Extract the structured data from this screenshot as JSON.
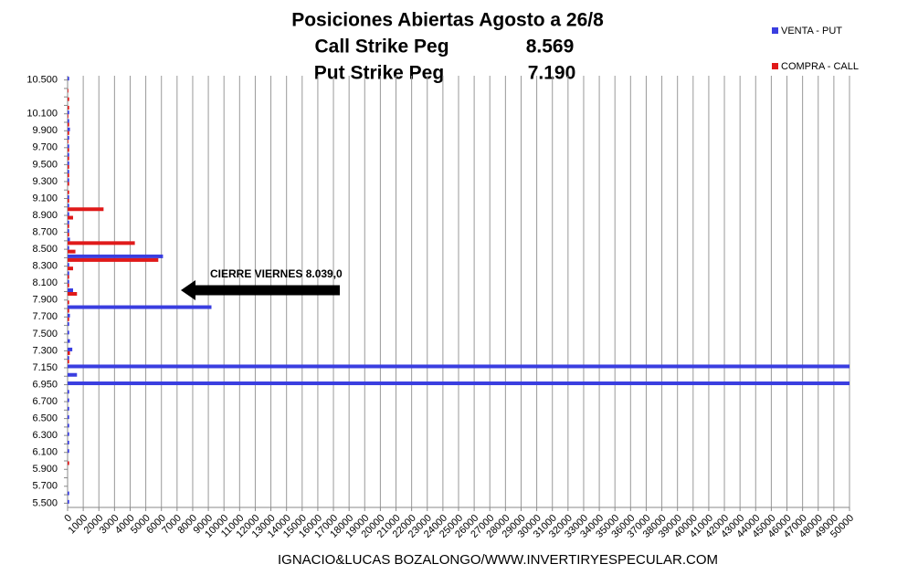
{
  "chart_data": {
    "type": "bar",
    "orientation": "horizontal",
    "title": "Posiciones Abiertas Agosto a 26/8",
    "subtitle_rows": [
      [
        "Call Strike Peg",
        "8.569"
      ],
      [
        "Put Strike Peg",
        "7.190"
      ]
    ],
    "annotation": "CIERRE VIERNES  8.039,0",
    "footer": "IGNACIO&LUCAS BOZALONGO/WWW.INVERTIRYESPECULAR.COM",
    "categories": [
      "5.500",
      null,
      "5.700",
      null,
      "5.900",
      null,
      "6.100",
      null,
      "6.300",
      null,
      "6.500",
      null,
      "6.700",
      null,
      "6.950",
      null,
      "7.150",
      null,
      "7.300",
      null,
      "7.500",
      null,
      "7.700",
      null,
      "7.900",
      null,
      "8.100",
      null,
      "8.300",
      null,
      "8.500",
      null,
      "8.700",
      null,
      "8.900",
      null,
      "9.100",
      null,
      "9.300",
      null,
      "9.500",
      null,
      "9.700",
      null,
      "9.900",
      null,
      "10.100",
      null,
      null,
      null,
      "10.500"
    ],
    "series": [
      {
        "name": "VENTA - PUT",
        "color": "#3a3ee0",
        "values": [
          100,
          100,
          0,
          0,
          0,
          0,
          100,
          100,
          100,
          100,
          100,
          100,
          100,
          100,
          50000,
          600,
          50000,
          100,
          300,
          150,
          100,
          100,
          150,
          9200,
          0,
          350,
          100,
          100,
          100,
          6100,
          100,
          150,
          100,
          100,
          100,
          100,
          100,
          0,
          100,
          100,
          100,
          100,
          100,
          100,
          150,
          100,
          100,
          0,
          0,
          0,
          100
        ]
      },
      {
        "name": "COMPRA - CALL",
        "color": "#e01a1a",
        "values": [
          0,
          0,
          0,
          0,
          0,
          100,
          0,
          0,
          0,
          0,
          0,
          0,
          0,
          0,
          0,
          0,
          0,
          100,
          150,
          0,
          0,
          0,
          100,
          100,
          100,
          600,
          100,
          100,
          350,
          5800,
          500,
          4300,
          100,
          100,
          350,
          2300,
          100,
          100,
          100,
          100,
          100,
          100,
          100,
          50,
          100,
          100,
          50,
          100,
          100,
          50,
          0
        ]
      }
    ],
    "xlim": [
      0,
      50000
    ],
    "xticks": [
      0,
      1000,
      2000,
      3000,
      4000,
      5000,
      6000,
      7000,
      8000,
      9000,
      10000,
      11000,
      12000,
      13000,
      14000,
      15000,
      16000,
      17000,
      18000,
      19000,
      20000,
      21000,
      22000,
      23000,
      24000,
      25000,
      26000,
      27000,
      28000,
      29000,
      30000,
      31000,
      32000,
      33000,
      34000,
      35000,
      36000,
      37000,
      38000,
      39000,
      40000,
      41000,
      42000,
      43000,
      44000,
      45000,
      46000,
      47000,
      48000,
      49000,
      50000
    ],
    "grid": true,
    "legend": "top-right"
  }
}
